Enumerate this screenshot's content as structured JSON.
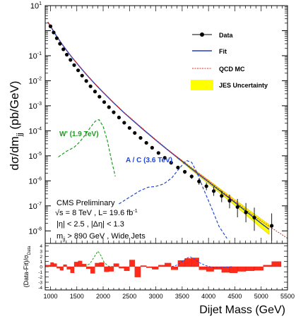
{
  "chart_data": [
    {
      "type": "scatter",
      "ylabel": "dσ/dm",
      "ylabel_sub": "jj",
      "ylabel_unit": " (pb/GeV)",
      "yscale": "log",
      "ylim": [
        3e-09,
        10
      ],
      "xlim": [
        900,
        5500
      ],
      "yticks": [
        {
          "base": "10",
          "exp": "1"
        },
        {
          "base": "10",
          "exp": "-1"
        },
        {
          "base": "10",
          "exp": "-2"
        },
        {
          "base": "10",
          "exp": "-3"
        },
        {
          "base": "10",
          "exp": "-4"
        },
        {
          "base": "10",
          "exp": "-5"
        },
        {
          "base": "10",
          "exp": "-6"
        },
        {
          "base": "10",
          "exp": "-7"
        },
        {
          "base": "10",
          "exp": "-8"
        }
      ],
      "legend": [
        {
          "label": "Data",
          "style": "data"
        },
        {
          "label": "Fit",
          "style": "fit"
        },
        {
          "label": "QCD MC",
          "style": "qcd"
        },
        {
          "label": "JES Uncertainty",
          "style": "jes"
        }
      ],
      "legend_position": "top-right",
      "colors": {
        "fit": "#1f3fbf",
        "qcd": "#e8281e",
        "band": "#ffff00",
        "band_edge": "#e0c000",
        "wprime": "#1f9a1f",
        "coloron": "#2147d8"
      },
      "data": {
        "x": [
          1000,
          1060,
          1120,
          1180,
          1245,
          1310,
          1380,
          1450,
          1525,
          1600,
          1680,
          1760,
          1845,
          1930,
          2020,
          2110,
          2200,
          2300,
          2400,
          2500,
          2600,
          2710,
          2820,
          2930,
          3050,
          3170,
          3290,
          3420,
          3550,
          3680,
          3820,
          3960,
          4100,
          4250,
          4400,
          4550,
          4710,
          4870,
          5200
        ],
        "y": [
          1.5,
          0.85,
          0.5,
          0.3,
          0.18,
          0.11,
          0.068,
          0.042,
          0.026,
          0.016,
          0.0098,
          0.006,
          0.0037,
          0.0023,
          0.0014,
          0.00088,
          0.00055,
          0.00034,
          0.00021,
          0.00013,
          8.2e-05,
          5.2e-05,
          3.3e-05,
          2.1e-05,
          1.3e-05,
          8.3e-06,
          5.3e-06,
          3.4e-06,
          2.3e-06,
          1.5e-06,
          9.5e-07,
          6.1e-07,
          3.9e-07,
          2.5e-07,
          1.6e-07,
          9e-08,
          5.5e-08,
          3.4e-08,
          1.6e-08
        ],
        "ylow": [
          1.45,
          0.82,
          0.48,
          0.29,
          0.175,
          0.107,
          0.066,
          0.041,
          0.025,
          0.0155,
          0.0095,
          0.0058,
          0.0036,
          0.0022,
          0.00135,
          0.00085,
          0.00053,
          0.00033,
          0.0002,
          0.000125,
          7.8e-05,
          4.9e-05,
          3.1e-05,
          1.9e-05,
          1.2e-05,
          7.6e-06,
          4.7e-06,
          2.9e-06,
          1.9e-06,
          1.2e-06,
          7e-07,
          4.2e-07,
          2.5e-07,
          1.4e-07,
          8e-08,
          3.5e-08,
          2.2e-08,
          1e-08,
          4e-09
        ],
        "yhigh": [
          1.55,
          0.88,
          0.52,
          0.31,
          0.185,
          0.113,
          0.07,
          0.043,
          0.027,
          0.0165,
          0.01,
          0.0062,
          0.0038,
          0.0024,
          0.00145,
          0.00091,
          0.00057,
          0.00035,
          0.00022,
          0.000135,
          8.6e-05,
          5.5e-05,
          3.5e-05,
          2.3e-05,
          1.4e-05,
          9e-06,
          5.9e-06,
          3.9e-06,
          2.7e-06,
          1.8e-06,
          1.25e-06,
          8.5e-07,
          5.8e-07,
          4e-07,
          2.8e-07,
          1.9e-07,
          1.3e-07,
          8.5e-08,
          5e-08
        ]
      },
      "fit": {
        "x": [
          950,
          1000,
          1100,
          1200,
          1300,
          1400,
          1500,
          1600,
          1700,
          1800,
          1900,
          2000,
          2200,
          2400,
          2600,
          2800,
          3000,
          3200,
          3400,
          3600,
          3800,
          4000,
          4200,
          4400,
          4600,
          4800,
          5000,
          5150
        ],
        "y": [
          2.2,
          1.5,
          0.68,
          0.33,
          0.17,
          0.09,
          0.05,
          0.028,
          0.016,
          0.0094,
          0.0056,
          0.0034,
          0.0013,
          0.00052,
          0.00022,
          9.5e-05,
          4.2e-05,
          1.9e-05,
          8.8e-06,
          4.1e-06,
          1.9e-06,
          9e-07,
          4.2e-07,
          2e-07,
          9.3e-08,
          4.3e-08,
          2e-08,
          1.15e-08
        ]
      },
      "qcd_mc": {
        "x": [
          950,
          1000,
          1100,
          1200,
          1300,
          1400,
          1500,
          1600,
          1700,
          1800,
          1900,
          2000,
          2200,
          2400,
          2600,
          2800,
          3000,
          3200,
          3400,
          3600,
          3800,
          4000,
          4200,
          4400,
          4600,
          4800,
          5000,
          5200,
          5400,
          5500
        ],
        "y": [
          2.25,
          1.55,
          0.7,
          0.34,
          0.175,
          0.092,
          0.051,
          0.029,
          0.0165,
          0.0097,
          0.0058,
          0.0035,
          0.00135,
          0.00054,
          0.00023,
          0.0001,
          4.4e-05,
          2e-05,
          9.3e-06,
          4.4e-06,
          2.1e-06,
          1e-06,
          4.7e-07,
          2.2e-07,
          1.05e-07,
          5e-08,
          2.5e-08,
          1.3e-08,
          7e-09,
          5e-09
        ]
      },
      "jes_band": {
        "x": [
          3400,
          3600,
          3800,
          4000,
          4200,
          4400,
          4600,
          4800,
          5000,
          5150
        ],
        "ylow": [
          8.2e-06,
          3.7e-06,
          1.65e-06,
          7.6e-07,
          3.4e-07,
          1.55e-07,
          6.9e-08,
          3e-08,
          1.3e-08,
          7.2e-09
        ],
        "yhigh": [
          9.4e-06,
          4.6e-06,
          2.2e-06,
          1.08e-06,
          5.2e-07,
          2.55e-07,
          1.25e-07,
          6.1e-08,
          3e-08,
          1.8e-08
        ]
      },
      "signals": [
        {
          "name": "W' (1.9 TeV)",
          "x": [
            1150,
            1300,
            1450,
            1550,
            1650,
            1750,
            1850,
            1920,
            2000,
            2080,
            2150,
            2230
          ],
          "y": [
            9e-06,
            1.5e-05,
            2.2e-05,
            3.5e-05,
            6.5e-05,
            0.00013,
            0.00024,
            0.00028,
            0.00015,
            4e-05,
            8e-06,
            1.5e-06
          ]
        },
        {
          "name": "A / C (3.6 TeV)",
          "x": [
            2300,
            2500,
            2700,
            2850,
            3000,
            3150,
            3300,
            3450,
            3580,
            3680,
            3780,
            3900,
            4050,
            4200,
            4350
          ],
          "y": [
            1.2e-07,
            2.2e-07,
            4e-07,
            5.5e-07,
            6e-07,
            7.5e-07,
            1.3e-06,
            3.2e-06,
            6.5e-06,
            5.5e-06,
            2.2e-06,
            5e-07,
            9e-08,
            1.5e-08,
            5e-09
          ]
        }
      ],
      "annotations": {
        "experiment": "CMS Preliminary",
        "sqrt_s": "s = 8 TeV ,  L= 19.6 fb",
        "lumi_exp": "-1",
        "eta_cut_1": "|η| < 2.5 , |Δη| < 1.3",
        "mass_cut_prefix": "m",
        "mass_cut_sub": "jj",
        "mass_cut_suffix": " > 890 GeV , Wide Jets"
      }
    },
    {
      "type": "bar",
      "ylabel": "(Data-Fit)/σ",
      "ylabel_sub": "Data",
      "ylim": [
        -4.5,
        4.5
      ],
      "yticks": [
        "4",
        "3",
        "2",
        "1",
        "0",
        "-1",
        "-2",
        "-3",
        "-4"
      ],
      "xlabel": "Dijet Mass (GeV)",
      "xticks": [
        "1000",
        "1500",
        "2000",
        "2500",
        "3000",
        "3500",
        "4000",
        "4500",
        "5000",
        "5500"
      ],
      "bins": [
        [
          900,
          1000
        ],
        [
          1000,
          1060
        ],
        [
          1060,
          1120
        ],
        [
          1120,
          1180
        ],
        [
          1180,
          1245
        ],
        [
          1245,
          1310
        ],
        [
          1310,
          1380
        ],
        [
          1380,
          1450
        ],
        [
          1450,
          1525
        ],
        [
          1525,
          1600
        ],
        [
          1600,
          1680
        ],
        [
          1680,
          1760
        ],
        [
          1760,
          1845
        ],
        [
          1845,
          1930
        ],
        [
          1930,
          2020
        ],
        [
          2020,
          2110
        ],
        [
          2110,
          2200
        ],
        [
          2200,
          2300
        ],
        [
          2300,
          2400
        ],
        [
          2400,
          2500
        ],
        [
          2500,
          2600
        ],
        [
          2600,
          2710
        ],
        [
          2710,
          2820
        ],
        [
          2820,
          2930
        ],
        [
          2930,
          3050
        ],
        [
          3050,
          3170
        ],
        [
          3170,
          3290
        ],
        [
          3290,
          3420
        ],
        [
          3420,
          3550
        ],
        [
          3550,
          3680
        ],
        [
          3680,
          3820
        ],
        [
          3820,
          3960
        ],
        [
          3960,
          4100
        ],
        [
          4100,
          4250
        ],
        [
          4250,
          4400
        ],
        [
          4400,
          4550
        ],
        [
          4550,
          4710
        ],
        [
          4710,
          4870
        ],
        [
          4870,
          5040
        ],
        [
          5040,
          5200
        ],
        [
          5200,
          5380
        ]
      ],
      "values": [
        0.3,
        0.8,
        0.6,
        -0.3,
        -0.7,
        0.4,
        -0.5,
        -1.2,
        0.9,
        1.1,
        0.5,
        -0.4,
        -1.3,
        0.7,
        0.8,
        -1.0,
        -0.9,
        0.6,
        -0.3,
        -0.8,
        1.3,
        -2.0,
        0.2,
        -0.2,
        -0.5,
        0.3,
        0.7,
        -0.6,
        1.2,
        1.6,
        1.7,
        -0.6,
        -0.9,
        -0.5,
        -1.1,
        -1.2,
        -0.9,
        -0.8,
        -0.7,
        0.3,
        1.0
      ],
      "signals": [
        {
          "name": "W'",
          "x": [
            1650,
            1750,
            1850,
            1900,
            1960,
            2020,
            2100,
            2200
          ],
          "y": [
            0,
            0.6,
            2.2,
            3.0,
            2.1,
            0.8,
            0.1,
            0
          ]
        },
        {
          "name": "A / C",
          "x": [
            3300,
            3400,
            3500,
            3580,
            3650,
            3730,
            3820,
            3950,
            4100,
            4300,
            4450
          ],
          "y": [
            0,
            0.3,
            1.0,
            1.6,
            1.9,
            1.5,
            0.8,
            0.2,
            -0.2,
            -0.1,
            0
          ]
        }
      ]
    }
  ]
}
